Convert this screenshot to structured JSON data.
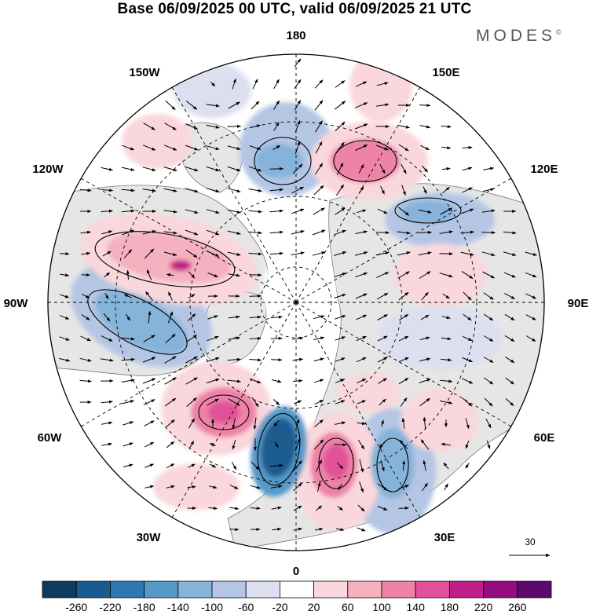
{
  "title": "Base 06/09/2025 00 UTC, valid 06/09/2025 21 UTC",
  "brand": {
    "name": "MODES",
    "mark": "©"
  },
  "longitude_labels": {
    "180": "180",
    "150E": "150E",
    "120E": "120E",
    "90E": "90E",
    "60E": "60E",
    "30E": "30E",
    "0": "0",
    "30W": "30W",
    "60W": "60W",
    "90W": "90W",
    "120W": "120W",
    "150W": "150W"
  },
  "reference_vector": {
    "label": "30"
  },
  "colorbar": {
    "colors": [
      "#0f3a5c",
      "#1a5b8f",
      "#2d78b3",
      "#5599c9",
      "#85b3d9",
      "#b4c6e4",
      "#dcdff0",
      "#ffffff",
      "#f9d7dc",
      "#f4b1bf",
      "#ee82a8",
      "#e05198",
      "#c21e87",
      "#920d80",
      "#5c0a6e"
    ],
    "labels": [
      "-260",
      "-220",
      "-180",
      "-140",
      "-100",
      "-60",
      "-20",
      "20",
      "60",
      "100",
      "140",
      "180",
      "220",
      "260"
    ]
  },
  "anomaly_colors": {
    "neg_strong": "#1a5b8f",
    "neg_mid": "#5599c9",
    "neg_weak": "#b4c6e4",
    "pos_strong": "#c21e87",
    "pos_mid": "#ee82a8",
    "pos_weak": "#f9d7dc",
    "land": "#e6e6e6"
  }
}
